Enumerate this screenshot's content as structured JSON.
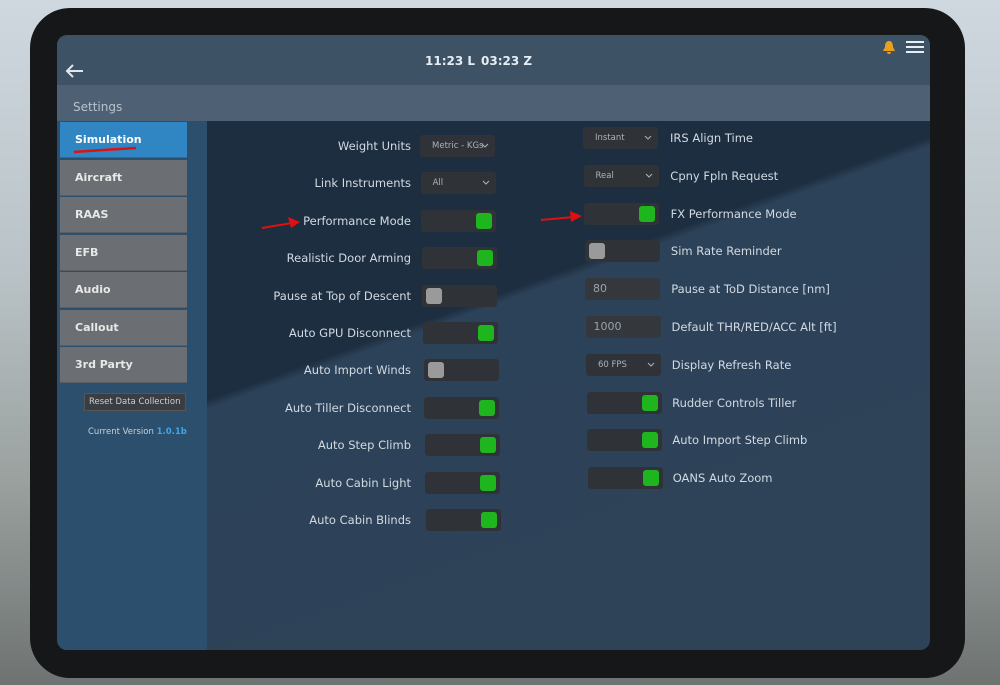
{
  "header": {
    "time_local": "11:23 L",
    "time_zulu": "03:23 Z"
  },
  "title": "Settings",
  "sidebar": {
    "items": [
      "Simulation",
      "Aircraft",
      "RAAS",
      "EFB",
      "Audio",
      "Callout",
      "3rd Party"
    ],
    "active": 0,
    "button": "Reset Data Collection",
    "version_label": "Current Version",
    "version": "1.0.1b"
  },
  "left_settings": [
    {
      "label": "Weight Units",
      "control": "dropdown",
      "value": "Metric - KGs"
    },
    {
      "label": "Link Instruments",
      "control": "dropdown",
      "value": "All"
    },
    {
      "label": "Performance Mode",
      "control": "toggle",
      "on": true
    },
    {
      "label": "Realistic Door Arming",
      "control": "toggle",
      "on": true
    },
    {
      "label": "Pause at Top of Descent",
      "control": "toggle",
      "on": false
    },
    {
      "label": "Auto GPU Disconnect",
      "control": "toggle",
      "on": true
    },
    {
      "label": "Auto Import Winds",
      "control": "toggle",
      "on": false
    },
    {
      "label": "Auto Tiller Disconnect",
      "control": "toggle",
      "on": true
    },
    {
      "label": "Auto Step Climb",
      "control": "toggle",
      "on": true
    },
    {
      "label": "Auto Cabin Light",
      "control": "toggle",
      "on": true
    },
    {
      "label": "Auto Cabin Blinds",
      "control": "toggle",
      "on": true
    }
  ],
  "right_settings": [
    {
      "label": "IRS Align Time",
      "control": "dropdown",
      "value": "Instant"
    },
    {
      "label": "Cpny Fpln Request",
      "control": "dropdown",
      "value": "Real"
    },
    {
      "label": "FX Performance Mode",
      "control": "toggle",
      "on": true
    },
    {
      "label": "Sim Rate Reminder",
      "control": "toggle",
      "on": false
    },
    {
      "label": "Pause at ToD Distance [nm]",
      "control": "input",
      "value": "80"
    },
    {
      "label": "Default THR/RED/ACC Alt [ft]",
      "control": "input",
      "value": "1000"
    },
    {
      "label": "Display Refresh Rate",
      "control": "dropdown",
      "value": "60 FPS"
    },
    {
      "label": "Rudder Controls Tiller",
      "control": "toggle",
      "on": true
    },
    {
      "label": "Auto Import Step Climb",
      "control": "toggle",
      "on": true
    },
    {
      "label": "OANS Auto Zoom",
      "control": "toggle",
      "on": true
    }
  ]
}
